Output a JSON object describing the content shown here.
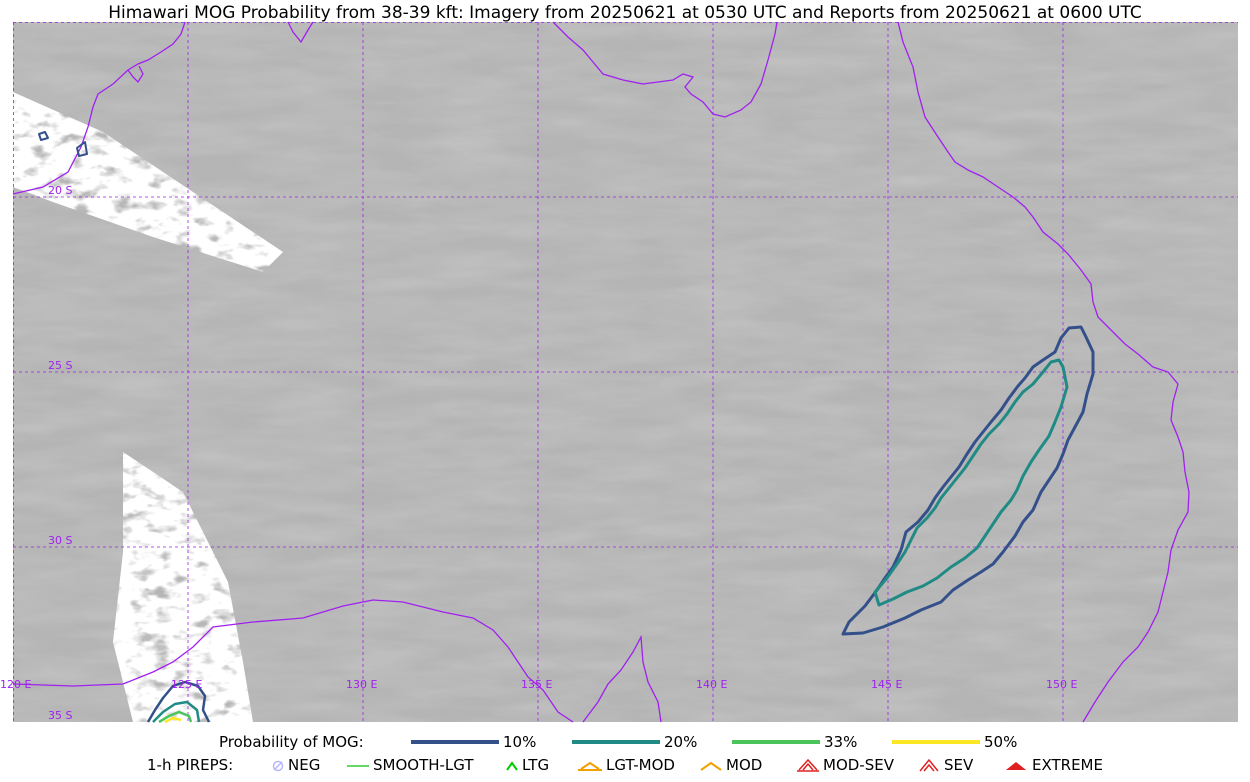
{
  "title": "Himawari MOG Probability from 38-39 kft: Imagery from 20250621 at 0530 UTC and Reports from 20250621 at 0600 UTC",
  "map": {
    "lon_range": [
      120,
      155
    ],
    "lat_range": [
      -35,
      -15
    ],
    "lat_labels": [
      "20 S",
      "25 S",
      "30 S",
      "35 S"
    ],
    "lon_labels": [
      "120 E",
      "125 E",
      "130 E",
      "135 E",
      "140 E",
      "145 E",
      "150 E"
    ],
    "gridline_color": "#a020f0",
    "coastline_color": "#a020f0"
  },
  "legend": {
    "probability_title": "Probability of MOG:",
    "probability_levels": [
      {
        "label": "10%",
        "color": "#34508a"
      },
      {
        "label": "20%",
        "color": "#1f8b84"
      },
      {
        "label": "33%",
        "color": "#4cc45c"
      },
      {
        "label": "50%",
        "color": "#fde725"
      }
    ],
    "pireps_title": "1-h PIREPS:",
    "pireps": [
      {
        "label": "NEG",
        "color": "#b8b8ff",
        "icon": "neg-circle-icon"
      },
      {
        "label": "SMOOTH-LGT",
        "color": "#33cc33",
        "icon": "line-icon"
      },
      {
        "label": "LTG",
        "color": "#00cc00",
        "icon": "caret-icon"
      },
      {
        "label": "LGT-MOD",
        "color": "#f0a000",
        "icon": "caret-bar-icon"
      },
      {
        "label": "MOD",
        "color": "#f0a000",
        "icon": "caret-icon"
      },
      {
        "label": "MOD-SEV",
        "color": "#e02020",
        "icon": "double-caret-bar-icon"
      },
      {
        "label": "SEV",
        "color": "#e02020",
        "icon": "double-caret-icon"
      },
      {
        "label": "EXTREME",
        "color": "#e02020",
        "icon": "filled-caret-icon"
      }
    ]
  }
}
